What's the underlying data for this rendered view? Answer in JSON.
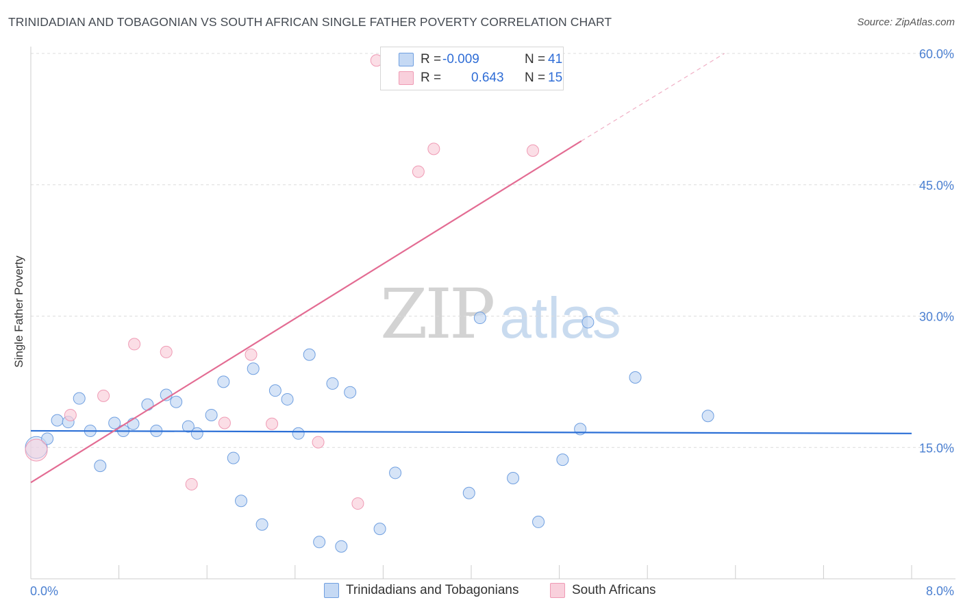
{
  "title": "TRINIDADIAN AND TOBAGONIAN VS SOUTH AFRICAN SINGLE FATHER POVERTY CORRELATION CHART",
  "source": "Source: ZipAtlas.com",
  "watermark": {
    "zip": "ZIP",
    "atlas": "atlas"
  },
  "legend": {
    "r_label": "R =",
    "n_label": "N =",
    "series1": {
      "r": "-0.009",
      "n": "41"
    },
    "series2": {
      "r": "0.643",
      "n": "15"
    }
  },
  "chart_data": {
    "type": "scatter",
    "title": "TRINIDADIAN AND TOBAGONIAN VS SOUTH AFRICAN SINGLE FATHER POVERTY CORRELATION CHART",
    "ylabel": "Single Father Poverty",
    "xlabel": "",
    "xlim": [
      0,
      8
    ],
    "ylim": [
      0,
      60
    ],
    "x_tick_labels": [
      "0.0%",
      "8.0%"
    ],
    "y_ticks": [
      15,
      30,
      45,
      60
    ],
    "y_tick_labels": [
      "15.0%",
      "30.0%",
      "45.0%",
      "60.0%"
    ],
    "grid": true,
    "legend_position": "bottom",
    "series": [
      {
        "name": "Trinidadians and Tobagonians",
        "color": "#6f9fe0",
        "fill": "#c5d9f4",
        "trend_color": "#2b6fd6",
        "trend": {
          "x": [
            0,
            8
          ],
          "y": [
            16.9,
            16.6
          ]
        },
        "points": [
          {
            "x": 0.05,
            "y": 15.0,
            "big": true
          },
          {
            "x": 0.15,
            "y": 16.0
          },
          {
            "x": 0.24,
            "y": 18.1
          },
          {
            "x": 0.34,
            "y": 17.9
          },
          {
            "x": 0.44,
            "y": 20.6
          },
          {
            "x": 0.54,
            "y": 16.9
          },
          {
            "x": 0.63,
            "y": 12.9
          },
          {
            "x": 0.76,
            "y": 17.8
          },
          {
            "x": 0.84,
            "y": 16.9
          },
          {
            "x": 0.93,
            "y": 17.7
          },
          {
            "x": 1.06,
            "y": 19.9
          },
          {
            "x": 1.14,
            "y": 16.9
          },
          {
            "x": 1.23,
            "y": 21.0
          },
          {
            "x": 1.32,
            "y": 20.2
          },
          {
            "x": 1.43,
            "y": 17.4
          },
          {
            "x": 1.51,
            "y": 16.6
          },
          {
            "x": 1.64,
            "y": 18.7
          },
          {
            "x": 1.75,
            "y": 22.5
          },
          {
            "x": 1.84,
            "y": 13.8
          },
          {
            "x": 1.91,
            "y": 8.9
          },
          {
            "x": 2.02,
            "y": 24.0
          },
          {
            "x": 2.1,
            "y": 6.2
          },
          {
            "x": 2.22,
            "y": 21.5
          },
          {
            "x": 2.33,
            "y": 20.5
          },
          {
            "x": 2.43,
            "y": 16.6
          },
          {
            "x": 2.53,
            "y": 25.6
          },
          {
            "x": 2.62,
            "y": 4.2
          },
          {
            "x": 2.74,
            "y": 22.3
          },
          {
            "x": 2.82,
            "y": 3.7
          },
          {
            "x": 2.9,
            "y": 21.3
          },
          {
            "x": 3.17,
            "y": 5.7
          },
          {
            "x": 3.31,
            "y": 12.1
          },
          {
            "x": 3.98,
            "y": 9.8
          },
          {
            "x": 4.08,
            "y": 29.8
          },
          {
            "x": 4.38,
            "y": 11.5
          },
          {
            "x": 4.61,
            "y": 6.5
          },
          {
            "x": 4.83,
            "y": 13.6
          },
          {
            "x": 4.99,
            "y": 17.1
          },
          {
            "x": 5.06,
            "y": 29.3
          },
          {
            "x": 5.49,
            "y": 23.0
          },
          {
            "x": 6.15,
            "y": 18.6
          }
        ]
      },
      {
        "name": "South Africans",
        "color": "#ef9ab4",
        "fill": "#f9d0dc",
        "trend_color": "#e36c93",
        "trend": {
          "x": [
            0,
            5.0
          ],
          "y": [
            11.0,
            50.0
          ],
          "dashed_to": {
            "x": 6.3,
            "y": 60.0
          }
        },
        "points": [
          {
            "x": 0.05,
            "y": 14.7,
            "big": true
          },
          {
            "x": 0.36,
            "y": 18.7
          },
          {
            "x": 0.66,
            "y": 20.9
          },
          {
            "x": 0.94,
            "y": 26.8
          },
          {
            "x": 1.23,
            "y": 25.9
          },
          {
            "x": 1.46,
            "y": 10.8
          },
          {
            "x": 1.76,
            "y": 17.8
          },
          {
            "x": 2.0,
            "y": 25.6
          },
          {
            "x": 2.19,
            "y": 17.7
          },
          {
            "x": 2.61,
            "y": 15.6
          },
          {
            "x": 2.97,
            "y": 8.6
          },
          {
            "x": 3.14,
            "y": 59.2
          },
          {
            "x": 3.52,
            "y": 46.5
          },
          {
            "x": 3.66,
            "y": 49.1
          },
          {
            "x": 4.56,
            "y": 48.9
          }
        ]
      }
    ]
  }
}
